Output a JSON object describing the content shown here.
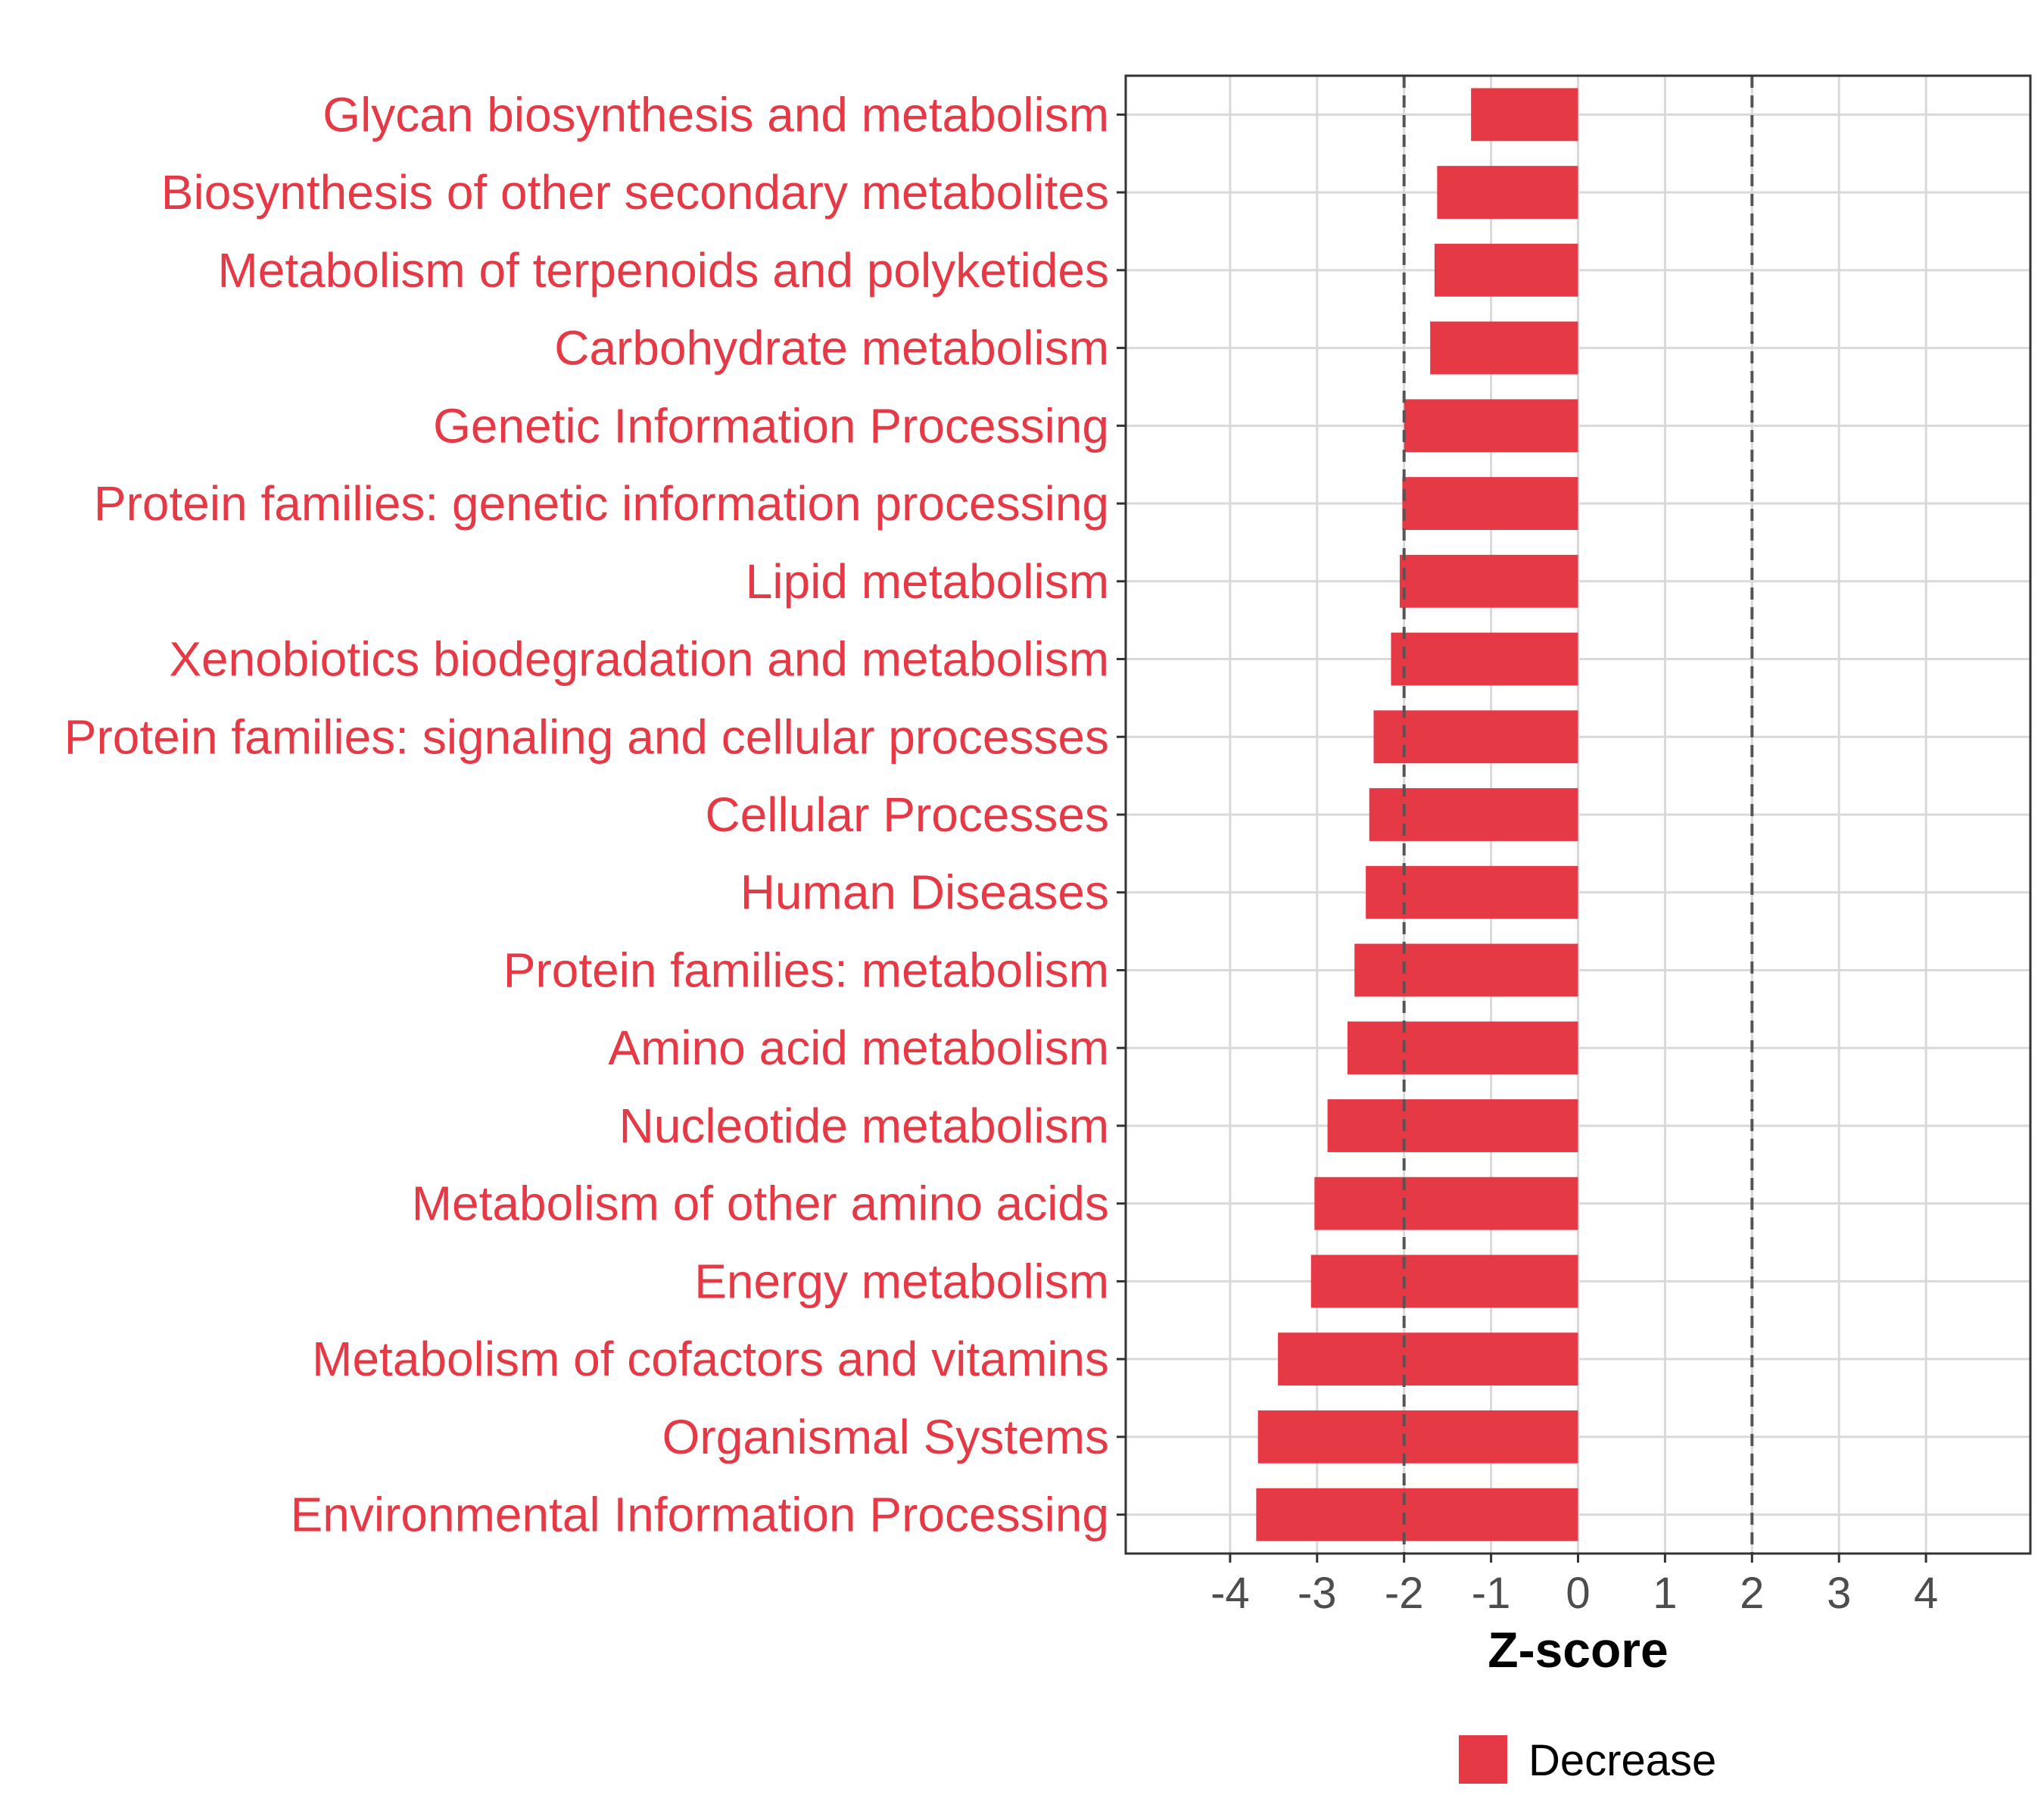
{
  "chart_data": {
    "type": "bar",
    "orientation": "horizontal",
    "categories": [
      "Glycan biosynthesis and metabolism",
      "Biosynthesis of other secondary metabolites",
      "Metabolism of terpenoids and polyketides",
      "Carbohydrate metabolism",
      "Genetic Information Processing",
      "Protein families: genetic information processing",
      "Lipid metabolism",
      "Xenobiotics biodegradation and metabolism",
      "Protein families: signaling and cellular processes",
      "Cellular Processes",
      "Human Diseases",
      "Protein families: metabolism",
      "Amino acid metabolism",
      "Nucleotide metabolism",
      "Metabolism of other amino acids",
      "Energy metabolism",
      "Metabolism of cofactors and vitamins",
      "Organismal Systems",
      "Environmental Information Processing"
    ],
    "values": [
      -1.23,
      -1.62,
      -1.65,
      -1.7,
      -2.0,
      -2.02,
      -2.05,
      -2.15,
      -2.35,
      -2.4,
      -2.44,
      -2.57,
      -2.65,
      -2.88,
      -3.03,
      -3.07,
      -3.45,
      -3.68,
      -3.7
    ],
    "series_name": "Decrease",
    "xlabel": "Z-score",
    "ylabel": "",
    "xlim": [
      -5.2,
      5.2
    ],
    "xticks": [
      -4,
      -3,
      -2,
      -1,
      0,
      1,
      2,
      3,
      4
    ],
    "xtick_labels": [
      "-4",
      "-3",
      "-2",
      "-1",
      "0",
      "1",
      "2",
      "3",
      "4"
    ],
    "reference_lines": [
      -2,
      2
    ],
    "grid": true,
    "legend_position": "bottom",
    "colors": {
      "bar": "#e63946",
      "label": "#e63946",
      "grid": "#d9d9d9",
      "reference": "#555555",
      "axis": "#333333",
      "tick_text": "#4d4d4d"
    }
  }
}
